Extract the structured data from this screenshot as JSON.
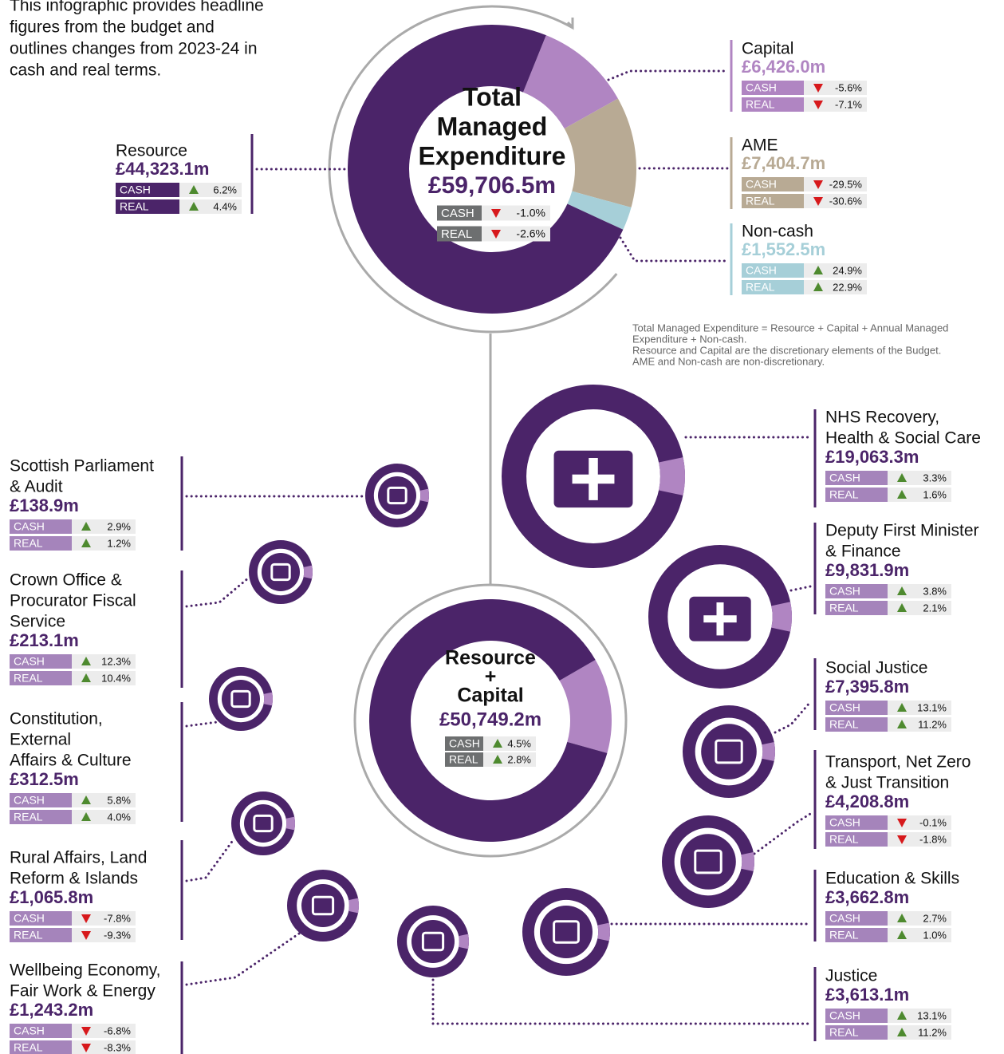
{
  "intro": [
    "This infographic provides headline",
    "figures from the budget and",
    "outlines changes from 2023-24 in",
    "cash and real terms."
  ],
  "cash_label": "CASH",
  "real_label": "REAL",
  "tme": {
    "title": [
      "Total",
      "Managed",
      "Expenditure"
    ],
    "amount": 59706.5,
    "amount_label": "£59,706.5m",
    "cash": "-1.0%",
    "real": "-2.6%"
  },
  "components": [
    {
      "name": "Resource",
      "amount": 44323.1,
      "amount_label": "£44,323.1m",
      "cash": "6.2%",
      "real": "4.4%",
      "color": "#4b2469"
    },
    {
      "name": "Capital",
      "amount": 6426.0,
      "amount_label": "£6,426.0m",
      "cash": "-5.6%",
      "real": "-7.1%",
      "color": "#b085c2"
    },
    {
      "name": "AME",
      "amount": 7404.7,
      "amount_label": "£7,404.7m",
      "cash": "-29.5%",
      "real": "-30.6%",
      "color": "#b8aa94"
    },
    {
      "name": "Non-cash",
      "amount": 1552.5,
      "amount_label": "£1,552.5m",
      "cash": "24.9%",
      "real": "22.9%",
      "color": "#a6cfd8"
    }
  ],
  "note": [
    "Total Managed Expenditure = Resource + Capital + Annual Managed",
    "Expenditure + Non-cash.",
    "Resource and Capital are the discretionary elements of the Budget.",
    "AME and Non-cash are non-discretionary."
  ],
  "resource_capital": {
    "title": [
      "Resource",
      "+",
      "Capital"
    ],
    "amount_label": "£50,749.2m",
    "cash": "4.5%",
    "real": "2.8%"
  },
  "portfolios": [
    {
      "name": [
        "Scottish Parliament",
        "& Audit"
      ],
      "amount": "£138.9m",
      "cash": "2.9%",
      "real": "1.2%"
    },
    {
      "name": [
        "Crown Office &",
        "Procurator Fiscal",
        "Service"
      ],
      "amount": "£213.1m",
      "cash": "12.3%",
      "real": "10.4%"
    },
    {
      "name": [
        "Constitution,",
        "External",
        "Affairs & Culture"
      ],
      "amount": "£312.5m",
      "cash": "5.8%",
      "real": "4.0%"
    },
    {
      "name": [
        "Rural Affairs, Land",
        "Reform & Islands"
      ],
      "amount": "£1,065.8m",
      "cash": "-7.8%",
      "real": "-9.3%"
    },
    {
      "name": [
        "Wellbeing Economy,",
        "Fair Work & Energy"
      ],
      "amount": "£1,243.2m",
      "cash": "-6.8%",
      "real": "-8.3%"
    },
    {
      "name": [
        "NHS Recovery,",
        "Health & Social Care"
      ],
      "amount": "£19,063.3m",
      "cash": "3.3%",
      "real": "1.6%"
    },
    {
      "name": [
        "Deputy First Minister",
        "& Finance"
      ],
      "amount": "£9,831.9m",
      "cash": "3.8%",
      "real": "2.1%"
    },
    {
      "name": [
        "Social Justice"
      ],
      "amount": "£7,395.8m",
      "cash": "13.1%",
      "real": "11.2%"
    },
    {
      "name": [
        "Transport, Net Zero",
        "& Just Transition"
      ],
      "amount": "£4,208.8m",
      "cash": "-0.1%",
      "real": "-1.8%"
    },
    {
      "name": [
        "Education & Skills"
      ],
      "amount": "£3,662.8m",
      "cash": "2.7%",
      "real": "1.0%"
    },
    {
      "name": [
        "Justice"
      ],
      "amount": "£3,613.1m",
      "cash": "13.1%",
      "real": "11.2%"
    }
  ]
}
